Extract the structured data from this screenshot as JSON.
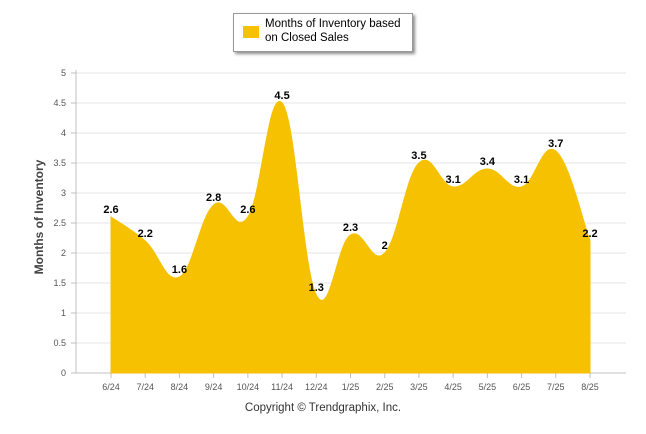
{
  "chart_data": {
    "type": "area",
    "series": [
      {
        "name": "Months of Inventory based on Closed Sales",
        "values": [
          2.6,
          2.2,
          1.6,
          2.8,
          2.6,
          4.5,
          1.3,
          2.3,
          2,
          3.5,
          3.1,
          3.4,
          3.1,
          3.7,
          2.2
        ]
      }
    ],
    "categories": [
      "6/24",
      "7/24",
      "8/24",
      "9/24",
      "10/24",
      "11/24",
      "12/24",
      "1/25",
      "2/25",
      "3/25",
      "4/25",
      "5/25",
      "6/25",
      "7/25",
      "8/25"
    ],
    "data_labels": [
      "2.6",
      "2.2",
      "1.6",
      "2.8",
      "2.6",
      "4.5",
      "1.3",
      "2.3",
      "2",
      "3.5",
      "3.1",
      "3.4",
      "3.1",
      "3.7",
      "2.2"
    ],
    "ylabel": "Months of Inventory",
    "ylim": [
      0,
      5
    ],
    "yticks": [
      "0",
      "0.5",
      "1",
      "1.5",
      "2",
      "2.5",
      "3",
      "3.5",
      "4",
      "4.5",
      "5"
    ],
    "grid": true,
    "legend_position": "top-center",
    "color": "#F6C100"
  },
  "legend": {
    "label": "Months of Inventory based on Closed Sales"
  },
  "footer": {
    "copyright": "Copyright © Trendgraphix, Inc."
  }
}
